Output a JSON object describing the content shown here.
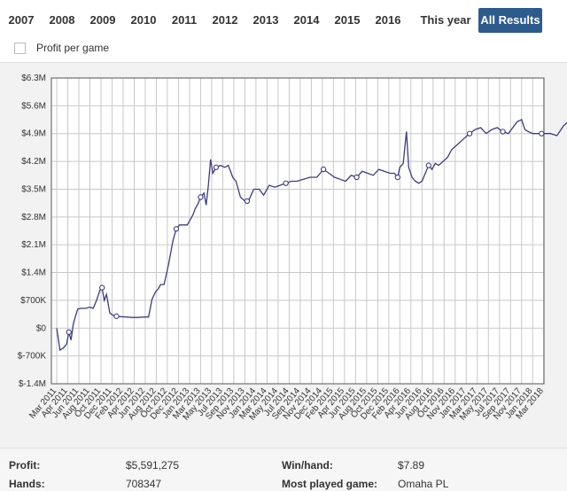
{
  "tabs": [
    {
      "label": "2007"
    },
    {
      "label": "2008"
    },
    {
      "label": "2009"
    },
    {
      "label": "2010"
    },
    {
      "label": "2011"
    },
    {
      "label": "2012"
    },
    {
      "label": "2013"
    },
    {
      "label": "2014"
    },
    {
      "label": "2015"
    },
    {
      "label": "2016"
    },
    {
      "label": "This year"
    },
    {
      "label": "All Results",
      "active": true
    }
  ],
  "toggle": {
    "label": "Profit per game",
    "checked": false
  },
  "colors": {
    "accent": "#2d5b8e",
    "line": "#3b3b86",
    "grid": "#c8c8c8"
  },
  "chart_data": {
    "type": "line",
    "ylim": [
      -1400000,
      6300000
    ],
    "yticks": [
      {
        "value": 6300000,
        "label": "$6.3M"
      },
      {
        "value": 5600000,
        "label": "$5.6M"
      },
      {
        "value": 4900000,
        "label": "$4.9M"
      },
      {
        "value": 4200000,
        "label": "$4.2M"
      },
      {
        "value": 3500000,
        "label": "$3.5M"
      },
      {
        "value": 2800000,
        "label": "$2.8M"
      },
      {
        "value": 2100000,
        "label": "$2.1M"
      },
      {
        "value": 1400000,
        "label": "$1.4M"
      },
      {
        "value": 700000,
        "label": "$700K"
      },
      {
        "value": 0,
        "label": "$0"
      },
      {
        "value": -700000,
        "label": "$-700K"
      },
      {
        "value": -1400000,
        "label": "$-1.4M"
      }
    ],
    "xticks": [
      "Mar 2011",
      "Apr 2011",
      "Jun 2011",
      "Aug 2011",
      "Oct 2011",
      "Dec 2011",
      "Feb 2012",
      "Apr 2012",
      "Jun 2012",
      "Aug 2012",
      "Oct 2012",
      "Dec 2012",
      "Jan 2013",
      "Mar 2013",
      "May 2013",
      "Jul 2013",
      "Sep 2013",
      "Nov 2013",
      "Jan 2014",
      "Mar 2014",
      "May 2014",
      "Jul 2014",
      "Sep 2014",
      "Nov 2014",
      "Dec 2014",
      "Feb 2015",
      "Apr 2015",
      "Jun 2015",
      "Aug 2015",
      "Oct 2015",
      "Dec 2015",
      "Feb 2016",
      "Apr 2016",
      "Jun 2016",
      "Aug 2016",
      "Oct 2016",
      "Nov 2016",
      "Jan 2017",
      "Mar 2017",
      "May 2017",
      "Jul 2017",
      "Sep 2017",
      "Nov 2017",
      "Jan 2018",
      "Mar 2018"
    ],
    "series": [
      {
        "points": [
          [
            0,
            0
          ],
          [
            0.3,
            -550000
          ],
          [
            0.6,
            -500000
          ],
          [
            0.9,
            -400000
          ],
          [
            1.1,
            -100000
          ],
          [
            1.3,
            -300000
          ],
          [
            1.5,
            100000
          ],
          [
            1.7,
            300000
          ],
          [
            1.9,
            480000
          ],
          [
            2.2,
            500000
          ],
          [
            2.6,
            500000
          ],
          [
            3.0,
            530000
          ],
          [
            3.3,
            500000
          ],
          [
            3.6,
            700000
          ],
          [
            3.9,
            950000
          ],
          [
            4.1,
            1020000
          ],
          [
            4.3,
            700000
          ],
          [
            4.5,
            850000
          ],
          [
            4.8,
            380000
          ],
          [
            5.1,
            320000
          ],
          [
            5.4,
            300000
          ],
          [
            5.8,
            290000
          ],
          [
            6.3,
            280000
          ],
          [
            6.8,
            270000
          ],
          [
            7.3,
            270000
          ],
          [
            7.9,
            280000
          ],
          [
            8.3,
            280000
          ],
          [
            8.6,
            720000
          ],
          [
            8.9,
            900000
          ],
          [
            9.2,
            1000000
          ],
          [
            9.4,
            1100000
          ],
          [
            9.7,
            1100000
          ],
          [
            10.1,
            1600000
          ],
          [
            10.5,
            2200000
          ],
          [
            10.8,
            2500000
          ],
          [
            11.1,
            2600000
          ],
          [
            11.4,
            2600000
          ],
          [
            11.8,
            2600000
          ],
          [
            12.0,
            2700000
          ],
          [
            12.3,
            2850000
          ],
          [
            12.5,
            3000000
          ],
          [
            12.8,
            3150000
          ],
          [
            13.0,
            3300000
          ],
          [
            13.3,
            3400000
          ],
          [
            13.5,
            3100000
          ],
          [
            13.7,
            3600000
          ],
          [
            13.9,
            4250000
          ],
          [
            14.1,
            3900000
          ],
          [
            14.4,
            4050000
          ],
          [
            14.8,
            4100000
          ],
          [
            15.2,
            4050000
          ],
          [
            15.5,
            4100000
          ],
          [
            15.9,
            3800000
          ],
          [
            16.2,
            3700000
          ],
          [
            16.6,
            3300000
          ],
          [
            17.0,
            3200000
          ],
          [
            17.4,
            3250000
          ],
          [
            17.8,
            3500000
          ],
          [
            18.3,
            3500000
          ],
          [
            18.7,
            3350000
          ],
          [
            19.2,
            3600000
          ],
          [
            19.7,
            3550000
          ],
          [
            20.2,
            3600000
          ],
          [
            20.7,
            3650000
          ],
          [
            21.2,
            3700000
          ],
          [
            21.7,
            3700000
          ],
          [
            22.3,
            3750000
          ],
          [
            22.9,
            3800000
          ],
          [
            23.5,
            3800000
          ],
          [
            24.1,
            4000000
          ],
          [
            24.6,
            3900000
          ],
          [
            25.1,
            3800000
          ],
          [
            25.6,
            3750000
          ],
          [
            26.1,
            3700000
          ],
          [
            26.6,
            3850000
          ],
          [
            27.1,
            3800000
          ],
          [
            27.6,
            3950000
          ],
          [
            28.1,
            3900000
          ],
          [
            28.6,
            3850000
          ],
          [
            29.1,
            4000000
          ],
          [
            29.6,
            3950000
          ],
          [
            30.1,
            3900000
          ],
          [
            30.5,
            3900000
          ],
          [
            30.8,
            3800000
          ],
          [
            31.0,
            4050000
          ],
          [
            31.3,
            4150000
          ],
          [
            31.6,
            4950000
          ],
          [
            31.8,
            4050000
          ],
          [
            32.1,
            3800000
          ],
          [
            32.4,
            3700000
          ],
          [
            32.7,
            3650000
          ],
          [
            33.0,
            3700000
          ],
          [
            33.3,
            3900000
          ],
          [
            33.6,
            4100000
          ],
          [
            33.9,
            4000000
          ],
          [
            34.2,
            4150000
          ],
          [
            34.5,
            4100000
          ],
          [
            34.9,
            4200000
          ],
          [
            35.3,
            4300000
          ],
          [
            35.7,
            4500000
          ],
          [
            36.1,
            4600000
          ],
          [
            36.5,
            4700000
          ],
          [
            36.9,
            4800000
          ],
          [
            37.3,
            4900000
          ],
          [
            37.8,
            5000000
          ],
          [
            38.3,
            5050000
          ],
          [
            38.8,
            4900000
          ],
          [
            39.3,
            5000000
          ],
          [
            39.8,
            5050000
          ],
          [
            40.3,
            4950000
          ],
          [
            40.8,
            4900000
          ],
          [
            41.2,
            5050000
          ],
          [
            41.6,
            5200000
          ],
          [
            42.0,
            5250000
          ],
          [
            42.3,
            5000000
          ],
          [
            42.6,
            4950000
          ],
          [
            43.0,
            4900000
          ],
          [
            43.8,
            4900000
          ],
          [
            44.6,
            4900000
          ],
          [
            45.2,
            4850000
          ],
          [
            45.8,
            5100000
          ],
          [
            46.2,
            5200000
          ],
          [
            46.6,
            5050000
          ],
          [
            47.0,
            5100000
          ],
          [
            47.5,
            5200000
          ],
          [
            48.0,
            5450000
          ],
          [
            48.4,
            5591275
          ]
        ],
        "markers": [
          [
            1.1,
            -100000
          ],
          [
            4.1,
            1020000
          ],
          [
            5.4,
            300000
          ],
          [
            10.8,
            2500000
          ],
          [
            13.0,
            3300000
          ],
          [
            14.4,
            4050000
          ],
          [
            17.2,
            3200000
          ],
          [
            20.7,
            3650000
          ],
          [
            24.1,
            4000000
          ],
          [
            27.1,
            3800000
          ],
          [
            30.8,
            3800000
          ],
          [
            33.6,
            4100000
          ],
          [
            37.3,
            4900000
          ],
          [
            40.3,
            4950000
          ],
          [
            43.8,
            4900000
          ],
          [
            46.6,
            5050000
          ],
          [
            48.4,
            5591275
          ]
        ]
      }
    ]
  },
  "stats": {
    "profit_label": "Profit:",
    "profit_value": "$5,591,275",
    "winhand_label": "Win/hand:",
    "winhand_value": "$7.89",
    "hands_label": "Hands:",
    "hands_value": "708347",
    "game_label": "Most played game:",
    "game_value": "Omaha PL"
  }
}
